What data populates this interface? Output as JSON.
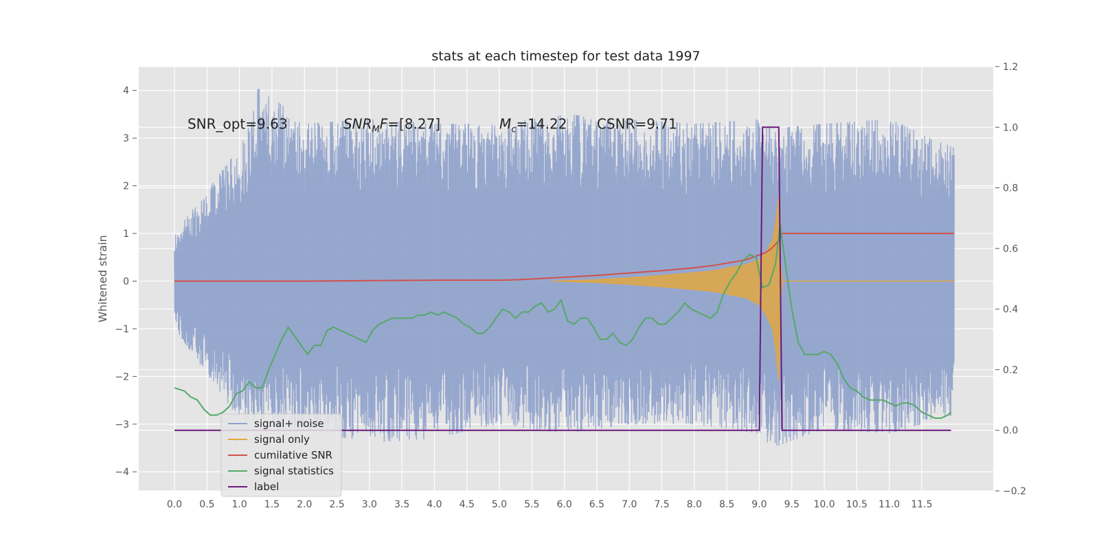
{
  "chart_data": {
    "type": "line",
    "title": "stats at each timestep for test data 1997",
    "ylabel": "Whitened strain",
    "xlim": [
      -0.55,
      12.6
    ],
    "ylim": [
      -4.4,
      4.5
    ],
    "y2lim": [
      -0.2,
      1.2
    ],
    "x_ticks": [
      "0.0",
      "0.5",
      "1.0",
      "1.5",
      "2.0",
      "2.5",
      "3.0",
      "3.5",
      "4.0",
      "4.5",
      "5.0",
      "5.5",
      "6.0",
      "6.5",
      "7.0",
      "7.5",
      "8.0",
      "8.5",
      "9.0",
      "9.5",
      "10.0",
      "10.5",
      "11.0",
      "11.5"
    ],
    "y_ticks": [
      "4",
      "3",
      "2",
      "1",
      "0",
      "−1",
      "−2",
      "−3",
      "−4"
    ],
    "y_tick_values": [
      4,
      3,
      2,
      1,
      0,
      -1,
      -2,
      -3,
      -4
    ],
    "y2_ticks": [
      "1.2",
      "1.0",
      "0.8",
      "0.6",
      "0.4",
      "0.2",
      "0.0",
      "−0.2"
    ],
    "y2_tick_values": [
      1.2,
      1.0,
      0.8,
      0.6,
      0.4,
      0.2,
      0.0,
      -0.2
    ],
    "grid": true,
    "legend_position": "lower-left",
    "annotations": [
      {
        "id": "snr_opt",
        "text": "SNR_opt=9.63",
        "x": 0.2,
        "y": 3.3
      },
      {
        "id": "snr_mf_pre",
        "text": "SNR",
        "sub": "M",
        "post": "F=[8.27]",
        "x": 2.6,
        "y": 3.3
      },
      {
        "id": "mc",
        "text": "M",
        "sub": "c",
        "post": "=14.22",
        "x": 5.0,
        "y": 3.3
      },
      {
        "id": "csnr",
        "text": "CSNR=9.71",
        "x": 6.5,
        "y": 3.3
      }
    ],
    "legend": [
      "signal+ noise",
      "signal only",
      "cumilative SNR",
      "signal statistics",
      "label"
    ],
    "series": [
      {
        "name": "signal+ noise",
        "color": "#8da0cb",
        "axis": "left",
        "note": "dense whitened noise, roughly between -3.0 and 3.5",
        "envelope_x": [
          0.0,
          1.0,
          1.3,
          2.0,
          3.0,
          4.0,
          5.0,
          6.0,
          7.0,
          8.0,
          9.0,
          9.2,
          10.0,
          11.0,
          12.0
        ],
        "envelope_high": [
          1.0,
          2.8,
          4.1,
          3.3,
          3.4,
          3.3,
          3.3,
          3.5,
          3.4,
          3.3,
          3.4,
          3.2,
          3.3,
          3.4,
          2.8
        ],
        "envelope_low": [
          -1.0,
          -2.9,
          -3.0,
          -3.1,
          -3.4,
          -3.3,
          -3.0,
          -3.2,
          -3.0,
          -3.0,
          -3.2,
          -3.5,
          -3.1,
          -3.2,
          -2.8
        ]
      },
      {
        "name": "signal only",
        "color": "#e5a73a",
        "axis": "left",
        "x": [
          5.8,
          6.5,
          7.0,
          7.5,
          8.0,
          8.3,
          8.6,
          8.8,
          9.0,
          9.1,
          9.2,
          9.25,
          9.3,
          9.33,
          9.36,
          12.0
        ],
        "upper": [
          0.0,
          0.03,
          0.07,
          0.12,
          0.18,
          0.22,
          0.3,
          0.35,
          0.45,
          0.6,
          0.85,
          1.2,
          1.8,
          0.4,
          0.0,
          0.0
        ],
        "lower": [
          0.0,
          -0.03,
          -0.07,
          -0.12,
          -0.18,
          -0.22,
          -0.3,
          -0.35,
          -0.5,
          -0.7,
          -1.0,
          -1.4,
          -2.1,
          -0.4,
          0.0,
          0.0
        ]
      },
      {
        "name": "cumilative SNR",
        "color": "#d1504a",
        "axis": "left",
        "x": [
          0.0,
          1.0,
          2.0,
          3.0,
          4.0,
          5.0,
          5.3,
          6.0,
          6.5,
          7.0,
          7.5,
          8.0,
          8.3,
          8.6,
          8.8,
          9.0,
          9.1,
          9.2,
          9.3,
          9.35,
          10.0,
          11.0,
          12.0
        ],
        "values": [
          0.0,
          0.0,
          0.0,
          0.01,
          0.02,
          0.02,
          0.03,
          0.08,
          0.12,
          0.17,
          0.22,
          0.28,
          0.33,
          0.4,
          0.45,
          0.55,
          0.6,
          0.7,
          0.85,
          1.0,
          1.0,
          1.0,
          1.0
        ]
      },
      {
        "name": "signal statistics",
        "color": "#55a868",
        "axis": "right",
        "x": [
          0.0,
          0.15,
          0.25,
          0.35,
          0.45,
          0.55,
          0.65,
          0.75,
          0.85,
          0.95,
          1.05,
          1.15,
          1.25,
          1.35,
          1.45,
          1.55,
          1.65,
          1.75,
          1.85,
          1.95,
          2.05,
          2.15,
          2.25,
          2.35,
          2.45,
          2.55,
          2.65,
          2.75,
          2.85,
          2.95,
          3.05,
          3.15,
          3.25,
          3.35,
          3.45,
          3.55,
          3.65,
          3.75,
          3.85,
          3.95,
          4.05,
          4.15,
          4.25,
          4.35,
          4.45,
          4.55,
          4.65,
          4.75,
          4.85,
          4.95,
          5.05,
          5.15,
          5.25,
          5.35,
          5.45,
          5.55,
          5.65,
          5.75,
          5.85,
          5.95,
          6.05,
          6.15,
          6.25,
          6.35,
          6.45,
          6.55,
          6.65,
          6.75,
          6.85,
          6.95,
          7.05,
          7.15,
          7.25,
          7.35,
          7.45,
          7.55,
          7.65,
          7.75,
          7.85,
          7.95,
          8.05,
          8.15,
          8.25,
          8.35,
          8.45,
          8.55,
          8.65,
          8.75,
          8.85,
          8.95,
          9.05,
          9.15,
          9.25,
          9.32,
          9.4,
          9.5,
          9.6,
          9.7,
          9.8,
          9.9,
          10.0,
          10.1,
          10.2,
          10.3,
          10.4,
          10.5,
          10.6,
          10.7,
          10.8,
          10.9,
          11.0,
          11.1,
          11.2,
          11.3,
          11.4,
          11.5,
          11.6,
          11.7,
          11.8,
          11.9,
          11.95
        ],
        "values": [
          0.14,
          0.13,
          0.11,
          0.1,
          0.07,
          0.05,
          0.05,
          0.06,
          0.08,
          0.12,
          0.13,
          0.16,
          0.14,
          0.14,
          0.2,
          0.25,
          0.3,
          0.34,
          0.31,
          0.28,
          0.25,
          0.28,
          0.28,
          0.33,
          0.34,
          0.33,
          0.32,
          0.31,
          0.3,
          0.29,
          0.33,
          0.35,
          0.36,
          0.37,
          0.37,
          0.37,
          0.37,
          0.38,
          0.38,
          0.39,
          0.38,
          0.39,
          0.38,
          0.37,
          0.35,
          0.34,
          0.32,
          0.32,
          0.34,
          0.37,
          0.4,
          0.39,
          0.37,
          0.39,
          0.39,
          0.41,
          0.42,
          0.39,
          0.4,
          0.43,
          0.36,
          0.35,
          0.37,
          0.37,
          0.34,
          0.3,
          0.3,
          0.32,
          0.29,
          0.28,
          0.3,
          0.34,
          0.37,
          0.37,
          0.35,
          0.35,
          0.37,
          0.39,
          0.42,
          0.4,
          0.39,
          0.38,
          0.37,
          0.39,
          0.45,
          0.49,
          0.52,
          0.56,
          0.58,
          0.57,
          0.47,
          0.48,
          0.55,
          0.68,
          0.55,
          0.4,
          0.29,
          0.25,
          0.25,
          0.25,
          0.26,
          0.25,
          0.22,
          0.17,
          0.14,
          0.13,
          0.11,
          0.1,
          0.1,
          0.1,
          0.09,
          0.08,
          0.09,
          0.09,
          0.08,
          0.06,
          0.05,
          0.04,
          0.04,
          0.05,
          0.06
        ]
      },
      {
        "name": "label",
        "color": "#6a1a7a",
        "axis": "right",
        "x": [
          0.0,
          9.0,
          9.05,
          9.3,
          9.35,
          11.95
        ],
        "values": [
          0.0,
          0.0,
          1.0,
          1.0,
          0.0,
          0.0
        ]
      }
    ]
  }
}
